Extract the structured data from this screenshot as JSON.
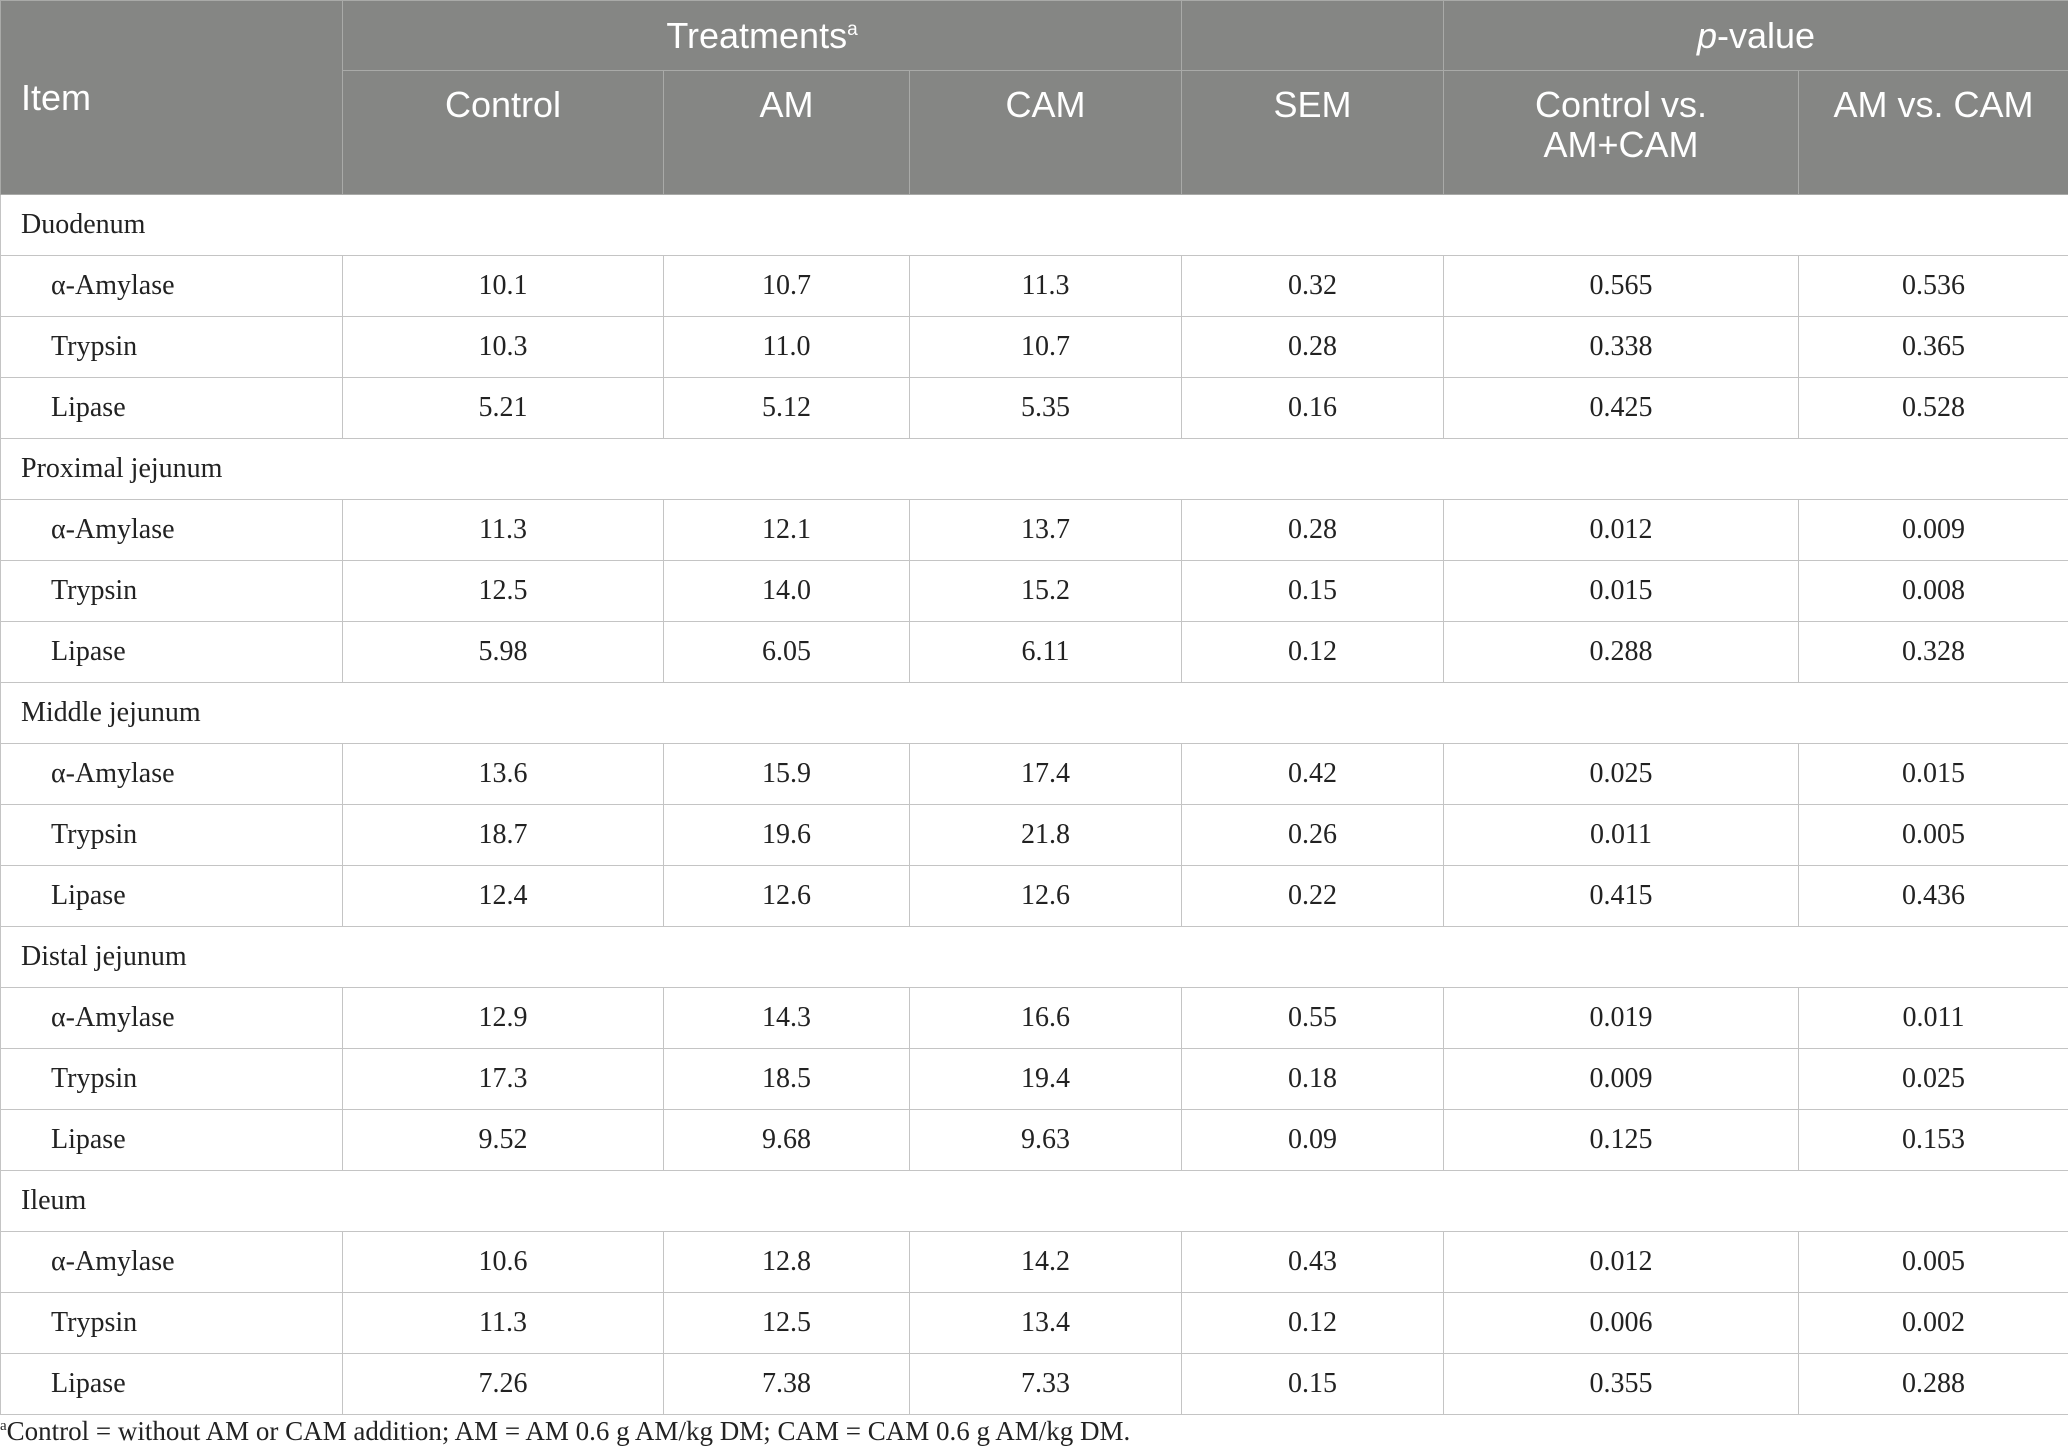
{
  "header": {
    "item": "Item",
    "treatments": "Treatments",
    "treatments_sup": "a",
    "pvalue_italic": "p",
    "pvalue_rest": "-value",
    "control": "Control",
    "am": "AM",
    "cam": "CAM",
    "sem": "SEM",
    "control_vs_line1": "Control vs.",
    "control_vs_line2": "AM+CAM",
    "am_vs_cam": "AM vs. CAM"
  },
  "sections": [
    {
      "name": "Duodenum",
      "rows": [
        {
          "item": "α-Amylase",
          "control": "10.1",
          "am": "10.7",
          "cam": "11.3",
          "sem": "0.32",
          "p1": "0.565",
          "p2": "0.536"
        },
        {
          "item": "Trypsin",
          "control": "10.3",
          "am": "11.0",
          "cam": "10.7",
          "sem": "0.28",
          "p1": "0.338",
          "p2": "0.365"
        },
        {
          "item": "Lipase",
          "control": "5.21",
          "am": "5.12",
          "cam": "5.35",
          "sem": "0.16",
          "p1": "0.425",
          "p2": "0.528"
        }
      ]
    },
    {
      "name": "Proximal jejunum",
      "rows": [
        {
          "item": "α-Amylase",
          "control": "11.3",
          "am": "12.1",
          "cam": "13.7",
          "sem": "0.28",
          "p1": "0.012",
          "p2": "0.009"
        },
        {
          "item": "Trypsin",
          "control": "12.5",
          "am": "14.0",
          "cam": "15.2",
          "sem": "0.15",
          "p1": "0.015",
          "p2": "0.008"
        },
        {
          "item": "Lipase",
          "control": "5.98",
          "am": "6.05",
          "cam": "6.11",
          "sem": "0.12",
          "p1": "0.288",
          "p2": "0.328"
        }
      ]
    },
    {
      "name": "Middle jejunum",
      "rows": [
        {
          "item": "α-Amylase",
          "control": "13.6",
          "am": "15.9",
          "cam": "17.4",
          "sem": "0.42",
          "p1": "0.025",
          "p2": "0.015"
        },
        {
          "item": "Trypsin",
          "control": "18.7",
          "am": "19.6",
          "cam": "21.8",
          "sem": "0.26",
          "p1": "0.011",
          "p2": "0.005"
        },
        {
          "item": "Lipase",
          "control": "12.4",
          "am": "12.6",
          "cam": "12.6",
          "sem": "0.22",
          "p1": "0.415",
          "p2": "0.436"
        }
      ]
    },
    {
      "name": "Distal jejunum",
      "rows": [
        {
          "item": "α-Amylase",
          "control": "12.9",
          "am": "14.3",
          "cam": "16.6",
          "sem": "0.55",
          "p1": "0.019",
          "p2": "0.011"
        },
        {
          "item": "Trypsin",
          "control": "17.3",
          "am": "18.5",
          "cam": "19.4",
          "sem": "0.18",
          "p1": "0.009",
          "p2": "0.025"
        },
        {
          "item": "Lipase",
          "control": "9.52",
          "am": "9.68",
          "cam": "9.63",
          "sem": "0.09",
          "p1": "0.125",
          "p2": "0.153"
        }
      ]
    },
    {
      "name": "Ileum",
      "rows": [
        {
          "item": "α-Amylase",
          "control": "10.6",
          "am": "12.8",
          "cam": "14.2",
          "sem": "0.43",
          "p1": "0.012",
          "p2": "0.005"
        },
        {
          "item": "Trypsin",
          "control": "11.3",
          "am": "12.5",
          "cam": "13.4",
          "sem": "0.12",
          "p1": "0.006",
          "p2": "0.002"
        },
        {
          "item": "Lipase",
          "control": "7.26",
          "am": "7.38",
          "cam": "7.33",
          "sem": "0.15",
          "p1": "0.355",
          "p2": "0.288"
        }
      ]
    }
  ],
  "footnote": {
    "marker": "a",
    "text": "Control = without AM or CAM addition; AM = AM 0.6 g AM/kg DM; CAM = CAM 0.6 g AM/kg DM."
  }
}
